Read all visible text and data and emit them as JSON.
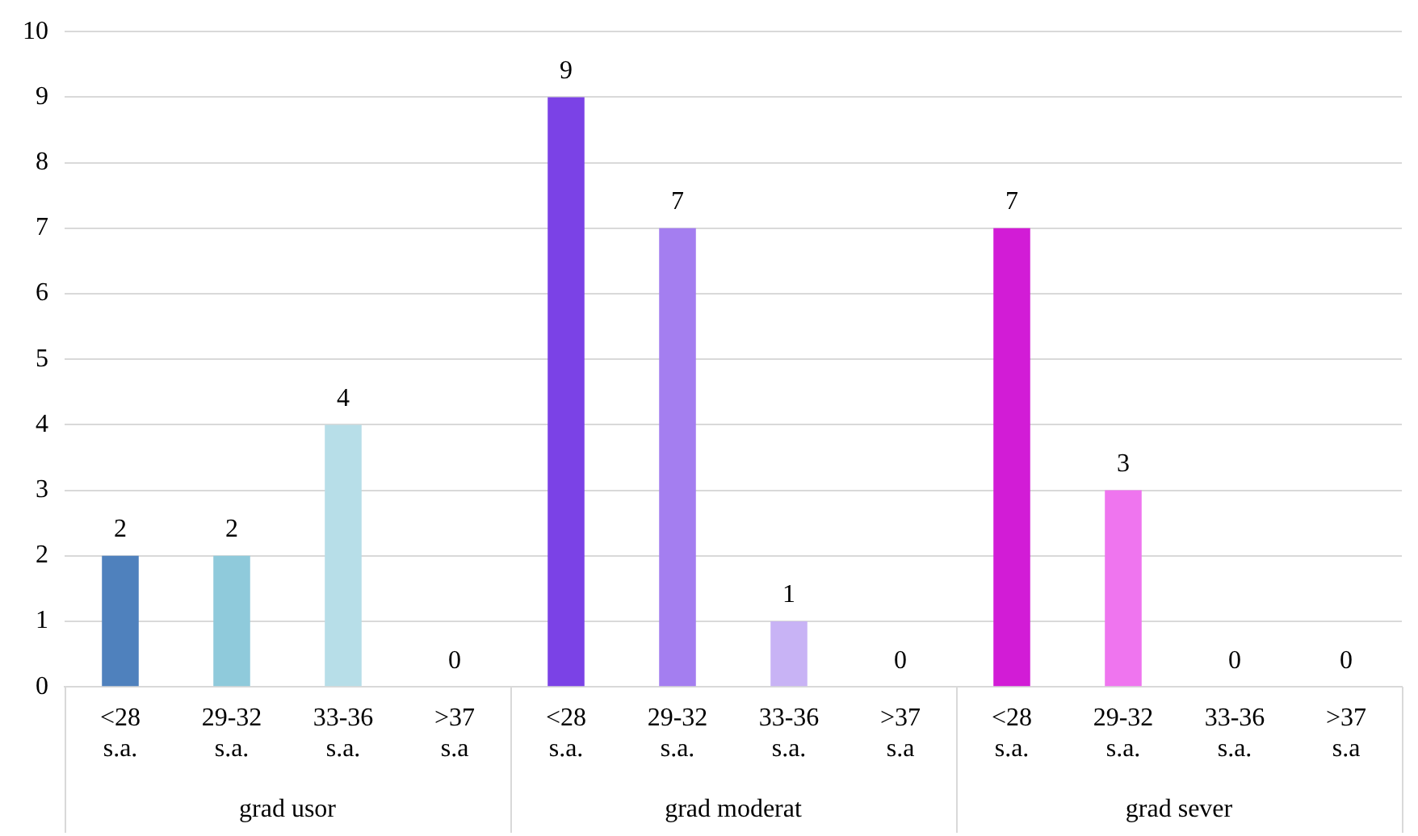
{
  "chart_data": {
    "type": "bar",
    "categories": [
      "<28 s.a.",
      "29-32 s.a.",
      "33-36 s.a.",
      ">37 s.a",
      "<28 s.a.",
      "29-32 s.a.",
      "33-36 s.a.",
      ">37 s.a",
      "<28 s.a.",
      "29-32 s.a.",
      "33-36 s.a.",
      ">37 s.a"
    ],
    "values": [
      2,
      2,
      4,
      0,
      9,
      7,
      1,
      0,
      7,
      3,
      0,
      0
    ],
    "colors": [
      "#4f81bd",
      "#8fcadb",
      "#b7dee8",
      "#dbeef4",
      "#7b42e6",
      "#a47ef0",
      "#c8b3f5",
      "#e2d8fa",
      "#d21cd6",
      "#ef75ef",
      "#f5b5f5",
      "#fadafa"
    ],
    "annotations": [
      "grad usor",
      "grad moderat",
      "grad sever"
    ],
    "ylim": [
      0,
      10
    ],
    "yticks": [
      0,
      1,
      2,
      3,
      4,
      5,
      6,
      7,
      8,
      9,
      10
    ],
    "grid": "y",
    "data_labels": true,
    "legend": false
  }
}
